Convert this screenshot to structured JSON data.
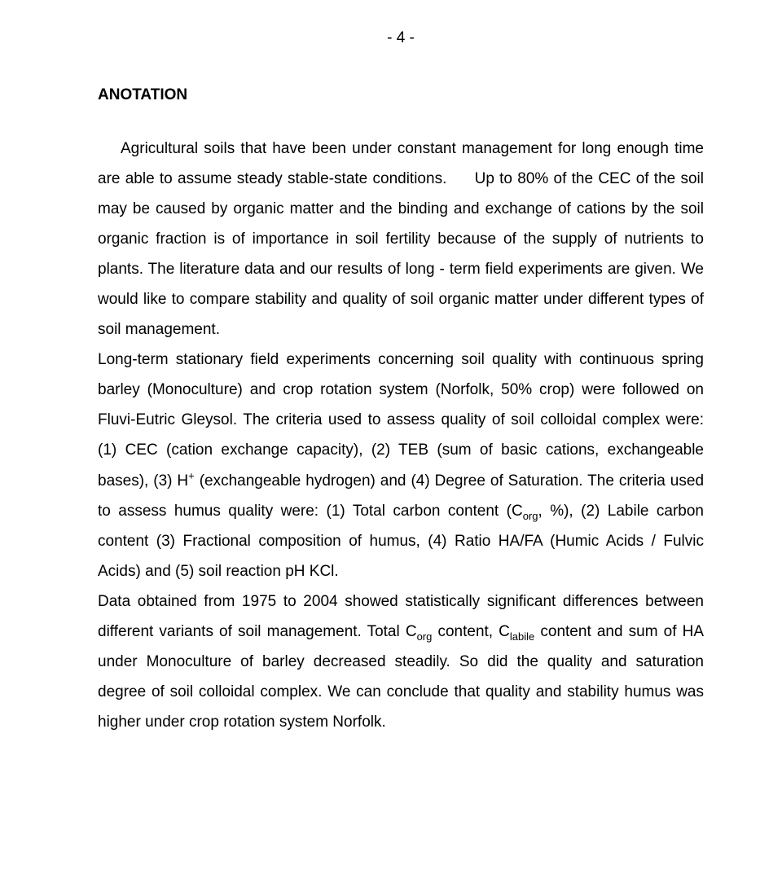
{
  "page_number": "- 4 -",
  "heading": "ANOTATION",
  "p1a": "Agricultural soils that have been under constant management for long enough time are able to assume steady stable-state conditions.",
  "p1b": "Up to 80% of the CEC of the soil may be caused by organic matter and the binding and exchange of cations by the soil organic fraction is of importance in soil fertility because of the supply of nutrients to plants. The literature data and our results of long - term field experiments are given. We would like to compare stability and quality of soil organic matter under different types of soil management.",
  "p2a": "Long-term stationary field experiments concerning soil quality with continuous spring barley (Monoculture) and crop rotation system (Norfolk, 50% crop) were followed on Fluvi-Eutric Gleysol. The criteria used to assess quality of soil colloidal complex were: (1) CEC (cation exchange capacity), (2) TEB (sum of basic cations, exchangeable bases), (3) H",
  "p2b": " (exchangeable hydrogen) and (4) Degree of Saturation. The criteria used to assess humus quality were: (1) Total carbon content (C",
  "p2c": ", %), (2) Labile carbon content (3) Fractional composition of humus, (4) Ratio HA/FA (Humic Acids / Fulvic Acids) and (5) soil reaction pH KCl.",
  "p3a": "Data obtained from 1975 to 2004 showed statistically significant differences between different variants of soil management. Total C",
  "p3b": " content, C",
  "p3c": " content and sum of HA under Monoculture of barley decreased steadily. So did the quality and saturation degree of soil colloidal complex. We can conclude that quality and stability humus was higher under crop rotation system Norfolk.",
  "sup_plus": "+",
  "sub_org": "org",
  "sub_labile": "labile"
}
